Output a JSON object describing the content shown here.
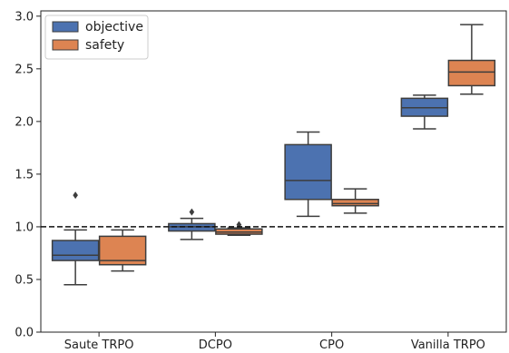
{
  "chart_data": {
    "type": "boxplot",
    "title": "",
    "xlabel": "",
    "ylabel": "",
    "ylim": [
      0.0,
      3.05
    ],
    "yticks": [
      "0.0",
      "0.5",
      "1.0",
      "1.5",
      "2.0",
      "2.5",
      "3.0"
    ],
    "categories": [
      "Saute TRPO",
      "DCPO",
      "CPO",
      "Vanilla TRPO"
    ],
    "reference_line": {
      "y": 1.0,
      "style": "dashed"
    },
    "legend": {
      "placement": "top-left"
    },
    "grid": false,
    "series": [
      {
        "name": "objective",
        "color": "#4c72b0",
        "boxes": [
          {
            "whisker_low": 0.45,
            "q1": 0.68,
            "median": 0.73,
            "q3": 0.87,
            "whisker_high": 0.97,
            "outliers": [
              1.3
            ]
          },
          {
            "whisker_low": 0.88,
            "q1": 0.96,
            "median": 1.0,
            "q3": 1.03,
            "whisker_high": 1.08,
            "outliers": [
              1.14
            ]
          },
          {
            "whisker_low": 1.1,
            "q1": 1.26,
            "median": 1.44,
            "q3": 1.78,
            "whisker_high": 1.9,
            "outliers": []
          },
          {
            "whisker_low": 1.93,
            "q1": 2.05,
            "median": 2.13,
            "q3": 2.22,
            "whisker_high": 2.25,
            "outliers": []
          }
        ]
      },
      {
        "name": "safety",
        "color": "#dd8452",
        "boxes": [
          {
            "whisker_low": 0.58,
            "q1": 0.64,
            "median": 0.68,
            "q3": 0.91,
            "whisker_high": 0.97,
            "outliers": []
          },
          {
            "whisker_low": 0.92,
            "q1": 0.93,
            "median": 0.95,
            "q3": 0.98,
            "whisker_high": 0.99,
            "outliers": [
              1.02
            ]
          },
          {
            "whisker_low": 1.13,
            "q1": 1.2,
            "median": 1.22,
            "q3": 1.26,
            "whisker_high": 1.36,
            "outliers": []
          },
          {
            "whisker_low": 2.26,
            "q1": 2.34,
            "median": 2.47,
            "q3": 2.58,
            "whisker_high": 2.92,
            "outliers": []
          }
        ]
      }
    ]
  }
}
